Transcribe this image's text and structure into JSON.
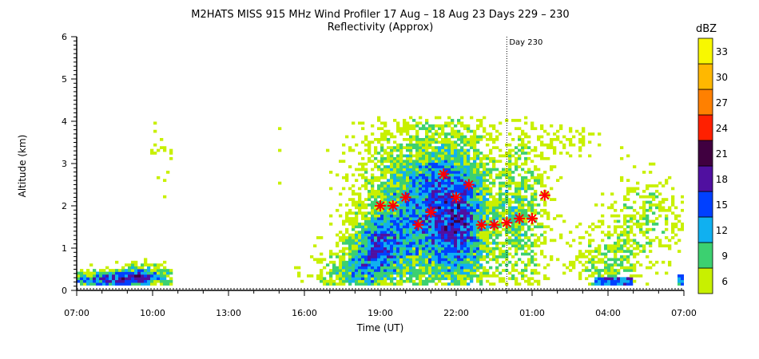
{
  "chart_data": {
    "type": "heatmap",
    "title": "M2HATS MISS 915 MHz Wind Profiler  17 Aug – 18 Aug 23 Days 229 – 230",
    "subtitle": "Reflectivity (Approx)",
    "xlabel": "Time (UT)",
    "ylabel": "Altitude (km)",
    "x_ticks": [
      "07:00",
      "10:00",
      "13:00",
      "16:00",
      "19:00",
      "22:00",
      "01:00",
      "04:00",
      "07:00"
    ],
    "x_range_hours": [
      0,
      24
    ],
    "y_ticks": [
      "0",
      "1",
      "2",
      "3",
      "4",
      "5",
      "6"
    ],
    "ylim": [
      0,
      6
    ],
    "day_marker": {
      "label": "Day 230",
      "x_hours": 17
    },
    "colorbar": {
      "title": "dBZ",
      "levels": [
        {
          "value": 6,
          "label": "6",
          "color": "#c8f000"
        },
        {
          "value": 9,
          "label": "9",
          "color": "#3cd070"
        },
        {
          "value": 12,
          "label": "12",
          "color": "#10b0f0"
        },
        {
          "value": 15,
          "label": "15",
          "color": "#0040ff"
        },
        {
          "value": 18,
          "label": "18",
          "color": "#5010a0"
        },
        {
          "value": 21,
          "label": "21",
          "color": "#400040"
        },
        {
          "value": 24,
          "label": "24",
          "color": "#ff2000"
        },
        {
          "value": 27,
          "label": "27",
          "color": "#ff8000"
        },
        {
          "value": 30,
          "label": "30",
          "color": "#ffb800"
        },
        {
          "value": 33,
          "label": "33",
          "color": "#f8f800"
        }
      ]
    },
    "markers": {
      "symbol": "asterisk",
      "color": "#ff0000",
      "points": [
        {
          "t": 12.0,
          "alt": 2.0
        },
        {
          "t": 12.5,
          "alt": 2.0
        },
        {
          "t": 13.0,
          "alt": 2.2
        },
        {
          "t": 13.5,
          "alt": 1.55
        },
        {
          "t": 14.0,
          "alt": 1.85
        },
        {
          "t": 14.5,
          "alt": 2.75
        },
        {
          "t": 15.0,
          "alt": 2.2
        },
        {
          "t": 15.5,
          "alt": 2.5
        },
        {
          "t": 16.0,
          "alt": 1.55
        },
        {
          "t": 16.5,
          "alt": 1.55
        },
        {
          "t": 17.0,
          "alt": 1.6
        },
        {
          "t": 17.5,
          "alt": 1.7
        },
        {
          "t": 18.0,
          "alt": 1.7
        },
        {
          "t": 18.5,
          "alt": 2.25
        }
      ]
    },
    "regions": [
      {
        "t0": 0.0,
        "t1": 3.7,
        "alt0": 0.0,
        "alt1": 0.7,
        "level": "high"
      },
      {
        "t0": 8.0,
        "t1": 11.5,
        "alt0": 0.0,
        "alt1": 1.5,
        "level": "moderate"
      },
      {
        "t0": 11.5,
        "t1": 18.8,
        "alt0": 0.0,
        "alt1": 4.1,
        "level": "moderate"
      },
      {
        "t0": 20.0,
        "t1": 24.0,
        "alt0": 0.0,
        "alt1": 2.8,
        "level": "low"
      }
    ]
  }
}
